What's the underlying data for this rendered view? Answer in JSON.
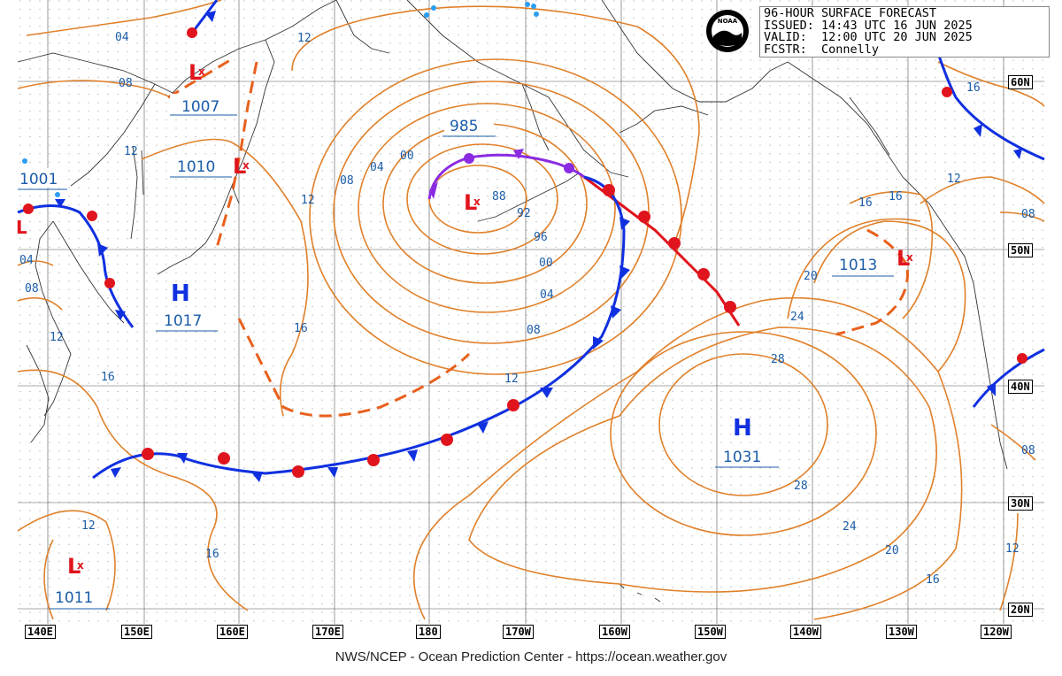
{
  "header": {
    "title": "96-HOUR SURFACE FORECAST",
    "issued": "ISSUED: 14:43 UTC 16 JUN 2025",
    "valid": "VALID:  12:00 UTC 20 JUN 2025",
    "forecaster": "FCSTR:  Connelly"
  },
  "footer": "NWS/NCEP - Ocean Prediction Center - https://ocean.weather.gov",
  "logo": "NOAA",
  "longitude_labels": [
    "140E",
    "150E",
    "160E",
    "170E",
    "180",
    "170W",
    "160W",
    "150W",
    "140W",
    "130W",
    "120W"
  ],
  "latitude_labels": [
    "60N",
    "50N",
    "40N",
    "30N",
    "20N"
  ],
  "pressure_systems": [
    {
      "type": "L",
      "pressure": "1007"
    },
    {
      "type": "L",
      "pressure": "1010"
    },
    {
      "type": "L",
      "pressure": "1001"
    },
    {
      "type": "L",
      "pressure": "985"
    },
    {
      "type": "H",
      "pressure": "1017"
    },
    {
      "type": "H",
      "pressure": "1031"
    },
    {
      "type": "L",
      "pressure": "1013"
    },
    {
      "type": "L",
      "pressure": "1011"
    }
  ],
  "isobar_labels": [
    "04",
    "12",
    "08",
    "12",
    "04",
    "08",
    "12",
    "08",
    "04",
    "00",
    "88",
    "92",
    "96",
    "00",
    "04",
    "08",
    "12",
    "16",
    "16",
    "12",
    "16",
    "20",
    "24",
    "28",
    "28",
    "24",
    "20",
    "16",
    "16",
    "12",
    "08",
    "12",
    "08",
    "16",
    "16",
    "12"
  ],
  "colors": {
    "isobar": "#e0802a",
    "cold_front": "#1030e0",
    "warm_front": "#e0141c",
    "occluded_front": "#8a2be2",
    "trough": "#e8601c",
    "label": "#1a5ca8",
    "grid": "#666666"
  }
}
